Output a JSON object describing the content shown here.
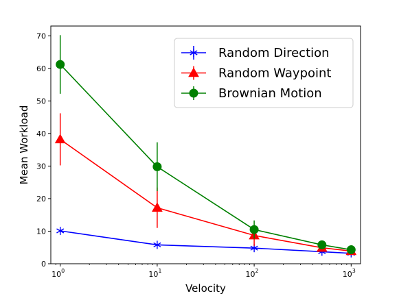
{
  "chart_data": {
    "type": "line",
    "xlabel": "Velocity",
    "ylabel": "Mean Workload",
    "xscale": "log",
    "xlim": [
      0.8,
      1250
    ],
    "ylim": [
      0,
      73
    ],
    "grid": false,
    "legend_position": "top-right",
    "x": [
      1,
      10,
      100,
      500,
      1000
    ],
    "x_ticks": [
      {
        "value": 1,
        "base": "10",
        "exp": "0"
      },
      {
        "value": 10,
        "base": "10",
        "exp": "1"
      },
      {
        "value": 100,
        "base": "10",
        "exp": "2"
      },
      {
        "value": 1000,
        "base": "10",
        "exp": "3"
      }
    ],
    "y_ticks": [
      "0",
      "10",
      "20",
      "30",
      "40",
      "50",
      "60",
      "70"
    ],
    "series": [
      {
        "name": "Random Direction",
        "color": "#0000ff",
        "marker": "star",
        "values": [
          10.1,
          5.8,
          4.8,
          3.7,
          3.2
        ],
        "errors": [
          0.5,
          0.3,
          0.4,
          0.3,
          0.2
        ]
      },
      {
        "name": "Random Waypoint",
        "color": "#ff0000",
        "marker": "triangle",
        "values": [
          38.2,
          17.2,
          8.7,
          4.9,
          3.9
        ],
        "errors": [
          8.0,
          6.2,
          3.2,
          1.2,
          0.9
        ]
      },
      {
        "name": "Brownian Motion",
        "color": "#008000",
        "marker": "circle",
        "values": [
          61.2,
          29.8,
          10.5,
          5.8,
          4.3
        ],
        "errors": [
          9.0,
          7.5,
          2.8,
          0.9,
          0.6
        ]
      }
    ]
  }
}
